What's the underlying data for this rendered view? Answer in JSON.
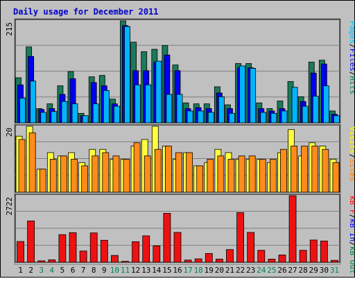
{
  "chart_data": {
    "type": "bar",
    "title": "Daily usage for December 2011",
    "categories": [
      "1",
      "2",
      "3",
      "4",
      "5",
      "6",
      "7",
      "8",
      "9",
      "10",
      "11",
      "12",
      "13",
      "14",
      "15",
      "16",
      "17",
      "18",
      "19",
      "20",
      "21",
      "22",
      "23",
      "24",
      "25",
      "26",
      "27",
      "28",
      "29",
      "30",
      "31"
    ],
    "weekend_days": [
      "3",
      "4",
      "10",
      "11",
      "17",
      "18",
      "24",
      "25",
      "31"
    ],
    "panels": [
      {
        "id": "hits-files-pages",
        "max_label": "215",
        "ylim": [
          0,
          215
        ],
        "label_parts": [
          {
            "text": "Pages",
            "color": "#00c0ff"
          },
          {
            "text": "/",
            "color": "#000000"
          },
          {
            "text": "Files",
            "color": "#0000ff"
          },
          {
            "text": "/",
            "color": "#000000"
          },
          {
            "text": "Hits",
            "color": "#008040"
          }
        ],
        "series": [
          {
            "name": "Hits",
            "color": "#1a7a5a",
            "values": [
              95,
              160,
              30,
              40,
              78,
              108,
              20,
              97,
              100,
              50,
              215,
              170,
              150,
              155,
              163,
              122,
              42,
              40,
              40,
              76,
              38,
              125,
              125,
              42,
              30,
              46,
              87,
              55,
              128,
              132,
              25
            ]
          },
          {
            "name": "Files",
            "color": "#0000ee",
            "values": [
              80,
              140,
              28,
              30,
              60,
              93,
              15,
              85,
              78,
              40,
              205,
              110,
              110,
              128,
              143,
              110,
              30,
              32,
              30,
              63,
              30,
              116,
              116,
              30,
              25,
              30,
              0,
              45,
              105,
              124,
              18
            ]
          },
          {
            "name": "Pages",
            "color": "#00b4ff",
            "values": [
              52,
              88,
              22,
              24,
              45,
              40,
              15,
              40,
              68,
              35,
              203,
              80,
              80,
              130,
              60,
              60,
              25,
              25,
              22,
              55,
              20,
              120,
              115,
              22,
              20,
              25,
              75,
              35,
              56,
              78,
              15
            ]
          }
        ]
      },
      {
        "id": "visits-sites",
        "max_label": "20",
        "ylim": [
          0,
          20
        ],
        "label_parts": [
          {
            "text": "Visits",
            "color": "#ffff00"
          },
          {
            "text": "/",
            "color": "#000000"
          },
          {
            "text": "Sites",
            "color": "#ff8000"
          }
        ],
        "series": [
          {
            "name": "Visits",
            "color": "#ffff40",
            "values": [
              17,
              20,
              7,
              12,
              11,
              12,
              9,
              13,
              13,
              10,
              10,
              14,
              16,
              20,
              14,
              10,
              12,
              8,
              9,
              13,
              12,
              10,
              10,
              10,
              9,
              12,
              19,
              11,
              15,
              14,
              10
            ]
          },
          {
            "name": "Sites",
            "color": "#ff8c1a",
            "values": [
              16,
              18,
              7,
              10,
              11,
              10,
              8,
              11,
              12,
              11,
              10,
              15,
              11,
              13,
              14,
              12,
              12,
              8,
              10,
              11,
              10,
              11,
              11,
              10,
              10,
              13,
              14,
              14,
              14,
              13,
              9
            ]
          }
        ]
      },
      {
        "id": "kbytes",
        "max_label": "2722",
        "ylim": [
          0,
          2722
        ],
        "label_parts": [
          {
            "text": "kB F",
            "color": "#ff0000"
          },
          {
            "text": "/",
            "color": "#000000"
          },
          {
            "text": "kB In",
            "color": "#0000ff"
          },
          {
            "text": "/",
            "color": "#000000"
          },
          {
            "text": "kB Out",
            "color": "#008040"
          }
        ],
        "series": [
          {
            "name": "kB F",
            "color": "#ee1111",
            "values": [
              850,
              1690,
              60,
              100,
              1130,
              1210,
              460,
              1200,
              900,
              280,
              40,
              840,
              1080,
              670,
              2000,
              1220,
              90,
              140,
              360,
              130,
              520,
              2030,
              1220,
              490,
              130,
              300,
              2722,
              490,
              910,
              870,
              80
            ]
          }
        ]
      }
    ]
  }
}
